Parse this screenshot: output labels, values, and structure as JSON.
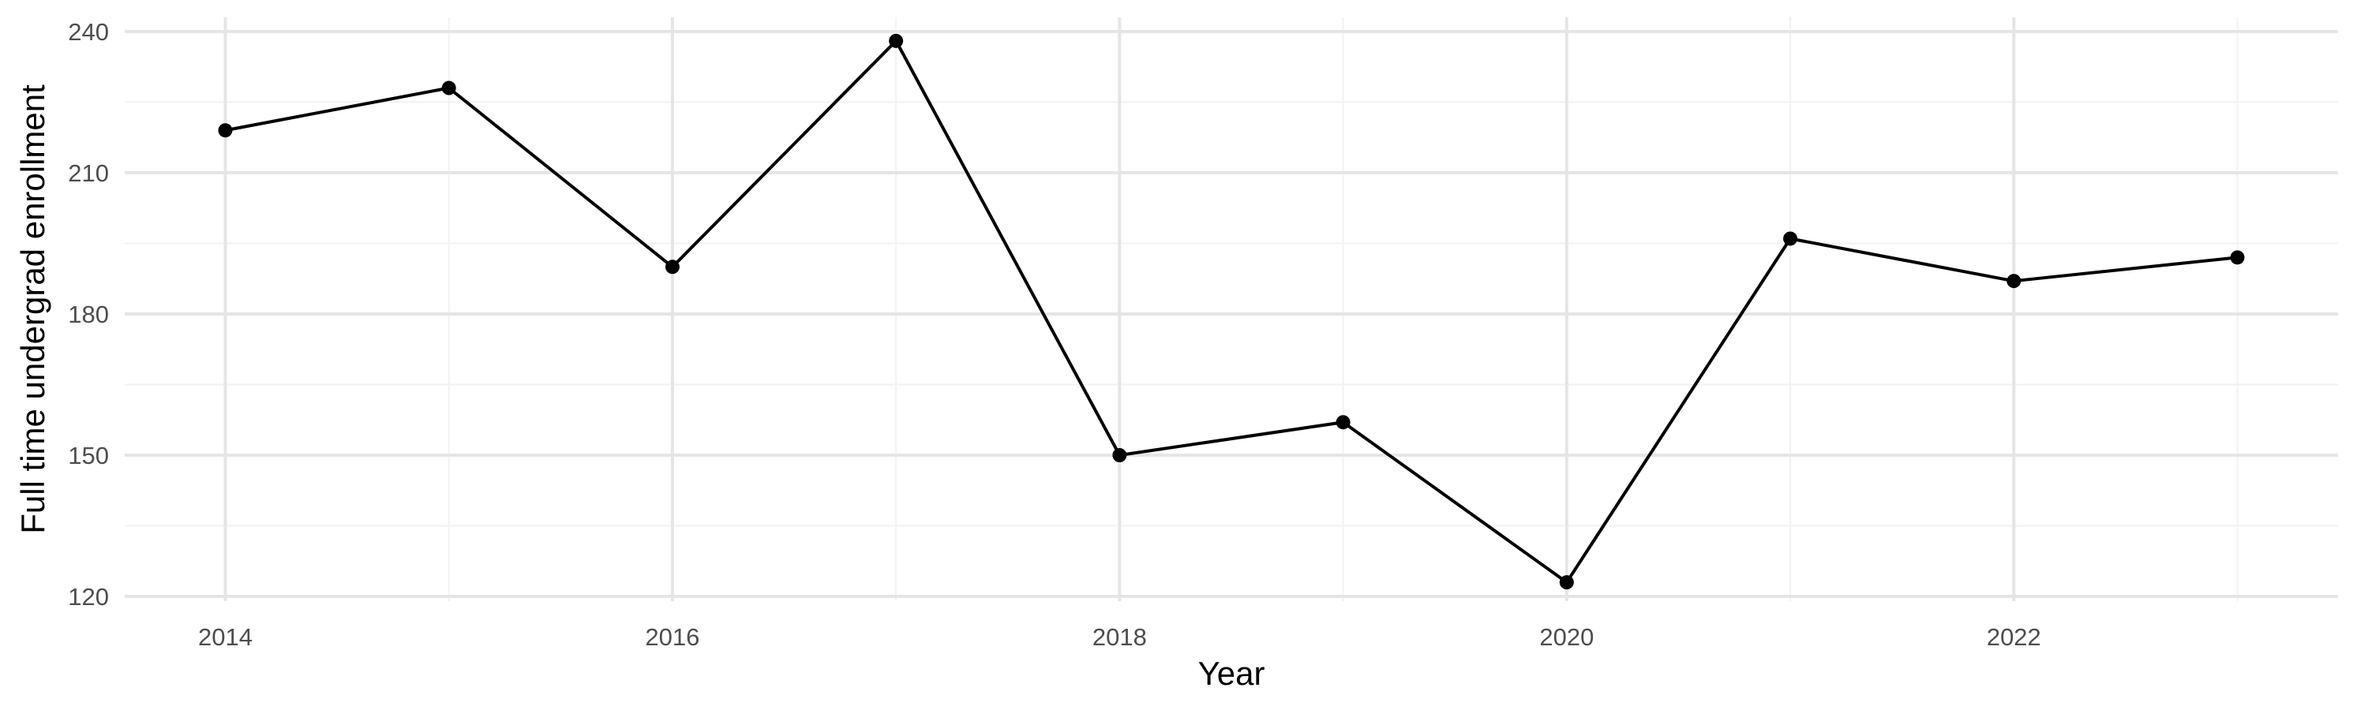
{
  "chart_data": {
    "type": "line",
    "title": "",
    "xlabel": "Year",
    "ylabel": "Full time undergrad enrollment",
    "x": [
      2014,
      2015,
      2016,
      2017,
      2018,
      2019,
      2020,
      2021,
      2022,
      2023
    ],
    "series": [
      {
        "values": [
          219,
          228,
          190,
          238,
          150,
          157,
          123,
          196,
          187,
          192
        ]
      }
    ],
    "xlim": [
      2013.55,
      2023.45
    ],
    "ylim": [
      119,
      243
    ],
    "x_ticks": [
      2014,
      2016,
      2018,
      2020,
      2022
    ],
    "x_minor_ticks": [
      2015,
      2017,
      2019,
      2021,
      2023
    ],
    "y_ticks": [
      120,
      150,
      180,
      210,
      240
    ],
    "y_minor_ticks": [
      135,
      165,
      195,
      225
    ],
    "grid": true,
    "legend": "none",
    "colors": {
      "line": "#000000",
      "point": "#000000",
      "grid": "#e5e5e5",
      "text": "#4d4d4d"
    }
  }
}
